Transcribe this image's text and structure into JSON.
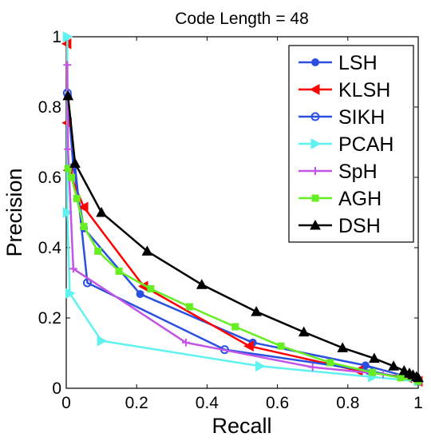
{
  "chart_data": {
    "type": "line",
    "title": "Code Length = 48",
    "xlabel": "Recall",
    "ylabel": "Precision",
    "xlim": [
      0,
      1
    ],
    "ylim": [
      0,
      1
    ],
    "xticks": [
      0,
      0.2,
      0.4,
      0.6,
      0.8,
      1
    ],
    "yticks": [
      0,
      0.2,
      0.4,
      0.6,
      0.8,
      1
    ],
    "xtick_labels": [
      "0",
      "0.2",
      "0.4",
      "0.6",
      "0.8",
      "1"
    ],
    "ytick_labels": [
      "0",
      "0.2",
      "0.4",
      "0.6",
      "0.8",
      "1"
    ],
    "grid": false,
    "legend_position": "top-right",
    "series": [
      {
        "name": "LSH",
        "color": "#2b50e0",
        "marker": "circle",
        "points": [
          [
            0.005,
            0.83
          ],
          [
            0.02,
            0.63
          ],
          [
            0.05,
            0.455
          ],
          [
            0.21,
            0.268
          ],
          [
            0.53,
            0.13
          ],
          [
            0.85,
            0.065
          ],
          [
            0.98,
            0.03
          ],
          [
            1.0,
            0.02
          ]
        ]
      },
      {
        "name": "KLSH",
        "color": "#ff0000",
        "marker": "triangle-left",
        "points": [
          [
            0.002,
            0.98
          ],
          [
            0.003,
            0.755
          ],
          [
            0.006,
            0.62
          ],
          [
            0.05,
            0.515
          ],
          [
            0.22,
            0.29
          ],
          [
            0.52,
            0.12
          ],
          [
            0.83,
            0.05
          ],
          [
            0.97,
            0.03
          ],
          [
            1.0,
            0.02
          ]
        ]
      },
      {
        "name": "SIKH",
        "color": "#2b50e0",
        "marker": "circle-open",
        "points": [
          [
            0.003,
            0.84
          ],
          [
            0.06,
            0.3
          ],
          [
            0.45,
            0.11
          ],
          [
            0.86,
            0.05
          ],
          [
            1.0,
            0.02
          ]
        ]
      },
      {
        "name": "PCAH",
        "color": "#5ff2ee",
        "marker": "triangle-right",
        "points": [
          [
            0.003,
            1.0
          ],
          [
            0.003,
            0.5
          ],
          [
            0.01,
            0.27
          ],
          [
            0.1,
            0.135
          ],
          [
            0.55,
            0.063
          ],
          [
            0.87,
            0.032
          ],
          [
            1.0,
            0.02
          ]
        ]
      },
      {
        "name": "SpH",
        "color": "#c254e6",
        "marker": "plus",
        "points": [
          [
            0.003,
            0.92
          ],
          [
            0.005,
            0.68
          ],
          [
            0.02,
            0.34
          ],
          [
            0.34,
            0.13
          ],
          [
            0.7,
            0.06
          ],
          [
            0.9,
            0.04
          ],
          [
            1.0,
            0.02
          ]
        ]
      },
      {
        "name": "AGH",
        "color": "#66ee22",
        "marker": "square",
        "points": [
          [
            0.005,
            0.625
          ],
          [
            0.015,
            0.6
          ],
          [
            0.03,
            0.54
          ],
          [
            0.05,
            0.46
          ],
          [
            0.09,
            0.39
          ],
          [
            0.15,
            0.333
          ],
          [
            0.24,
            0.283
          ],
          [
            0.35,
            0.232
          ],
          [
            0.48,
            0.175
          ],
          [
            0.61,
            0.12
          ],
          [
            0.75,
            0.073
          ],
          [
            0.87,
            0.045
          ],
          [
            0.95,
            0.03
          ],
          [
            1.0,
            0.02
          ]
        ]
      },
      {
        "name": "DSH",
        "color": "#000000",
        "marker": "triangle-up",
        "points": [
          [
            0.005,
            0.832
          ],
          [
            0.025,
            0.64
          ],
          [
            0.1,
            0.5
          ],
          [
            0.23,
            0.39
          ],
          [
            0.385,
            0.295
          ],
          [
            0.54,
            0.218
          ],
          [
            0.675,
            0.16
          ],
          [
            0.785,
            0.115
          ],
          [
            0.875,
            0.085
          ],
          [
            0.93,
            0.063
          ],
          [
            0.96,
            0.05
          ],
          [
            0.975,
            0.043
          ],
          [
            0.985,
            0.038
          ],
          [
            0.995,
            0.033
          ],
          [
            1.0,
            0.03
          ]
        ]
      }
    ]
  }
}
